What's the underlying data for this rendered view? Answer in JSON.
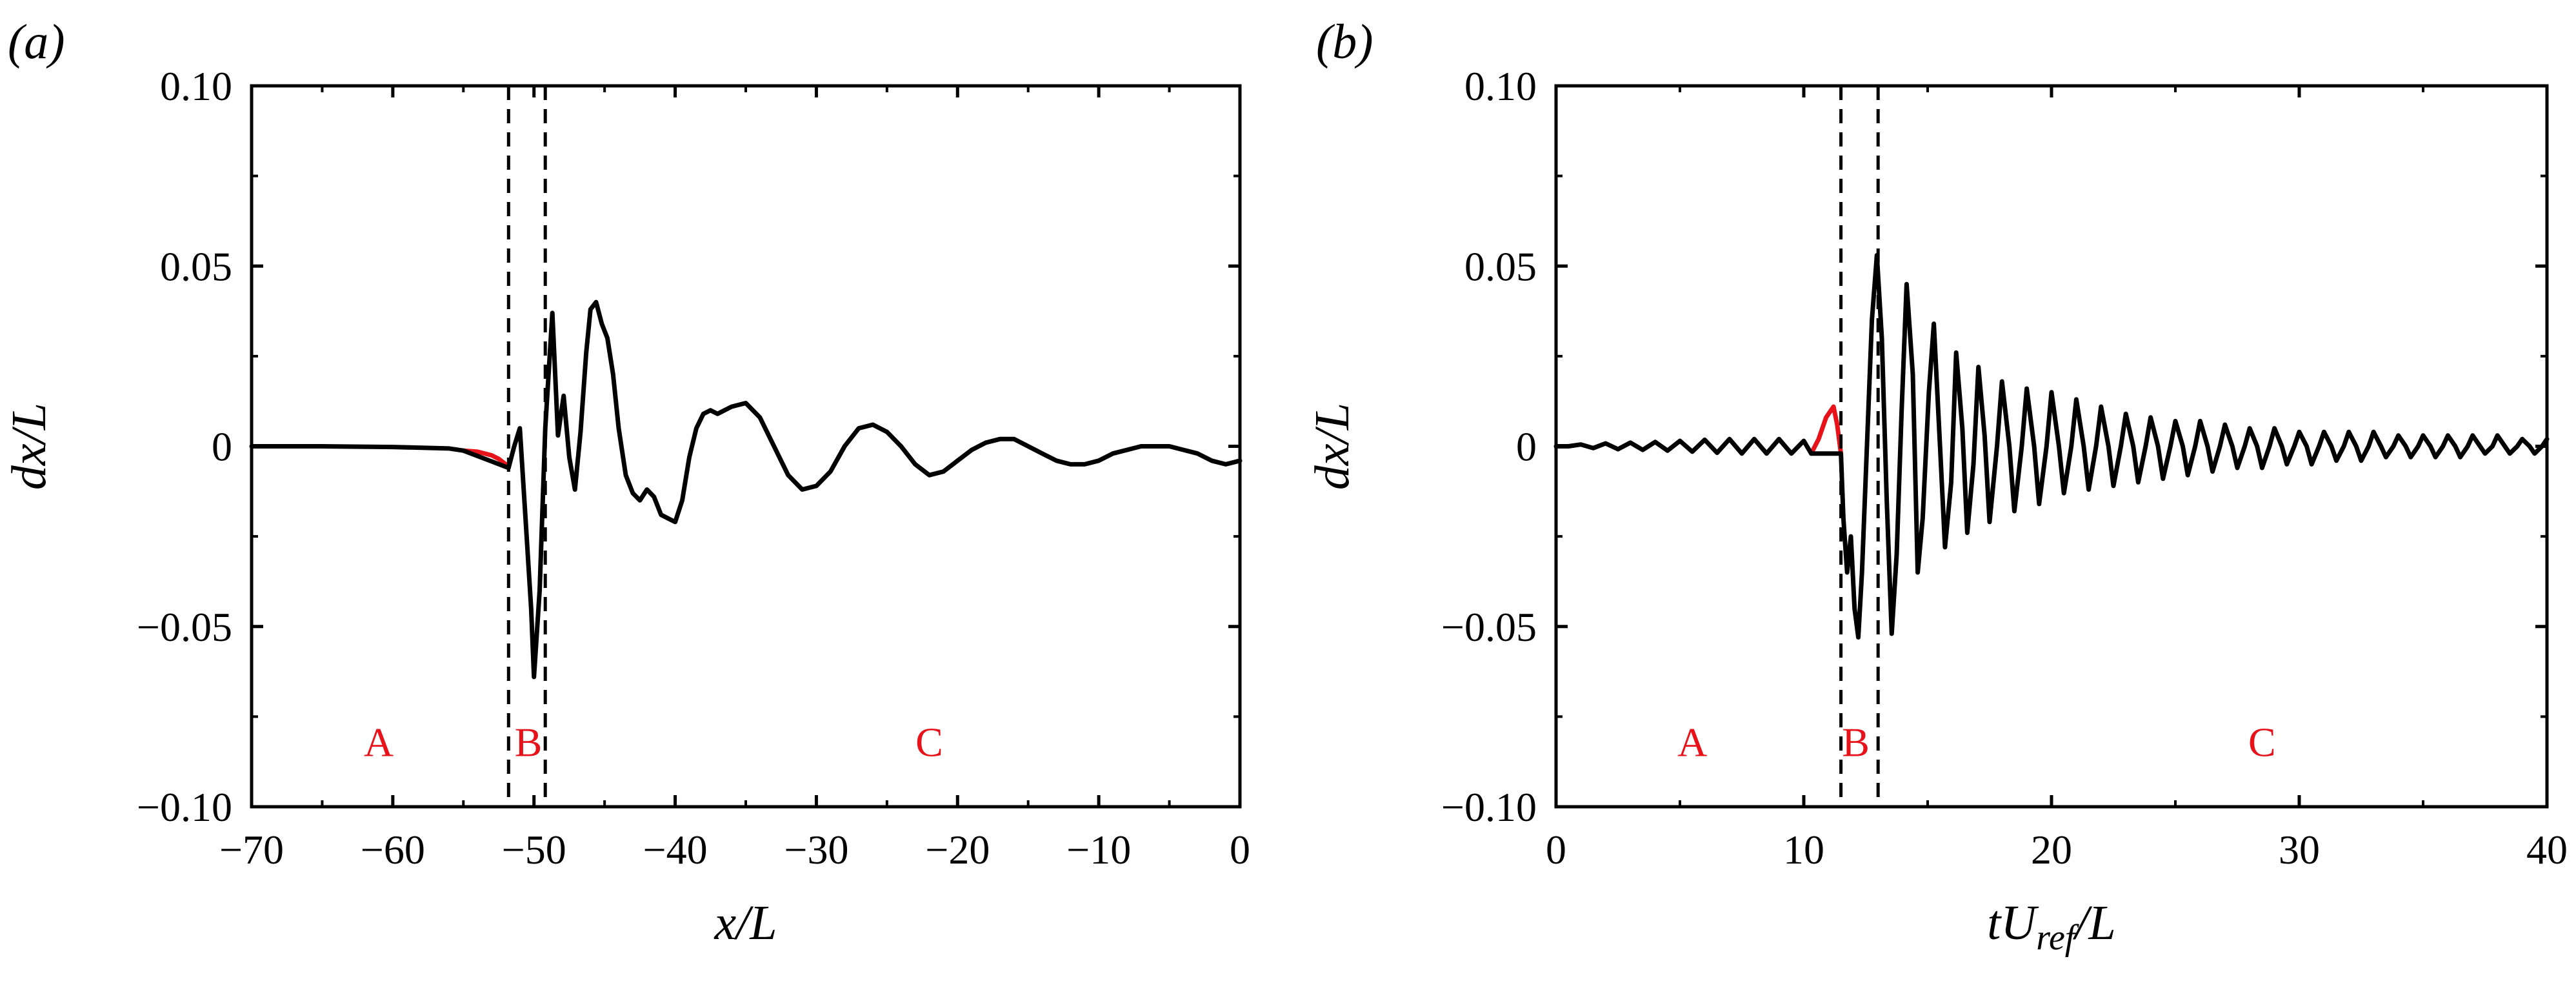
{
  "chart_data": [
    {
      "type": "line",
      "panel_label": "(a)",
      "xlabel": "x/L",
      "ylabel": "dx/L",
      "xlim": [
        -70,
        0
      ],
      "ylim": [
        -0.1,
        0.1
      ],
      "xticks": [
        -70,
        -60,
        -50,
        -40,
        -30,
        -20,
        -10,
        0
      ],
      "xtick_labels": [
        "−70",
        "−60",
        "−50",
        "−40",
        "−30",
        "−20",
        "−10",
        "0"
      ],
      "yticks": [
        -0.1,
        -0.05,
        0,
        0.05,
        0.1
      ],
      "ytick_labels": [
        "−0.10",
        "−0.05",
        "0",
        "0.05",
        "0.10"
      ],
      "vlines": [
        -51.8,
        -49.2
      ],
      "regions": [
        {
          "label": "A",
          "x": -61,
          "y": -0.082
        },
        {
          "label": "B",
          "x": -50.4,
          "y": -0.082
        },
        {
          "label": "C",
          "x": -22,
          "y": -0.082
        }
      ],
      "series": [
        {
          "color": "#e8131a",
          "x": [
            -55,
            -54,
            -53,
            -52.5,
            -52,
            -51.8
          ],
          "y": [
            -0.0012,
            -0.0015,
            -0.0025,
            -0.0035,
            -0.005,
            -0.006
          ]
        },
        {
          "color": "#000000",
          "x": [
            -70,
            -65,
            -60,
            -56,
            -55,
            -51.8,
            -51.4,
            -51,
            -50.6,
            -50.2,
            -50,
            -49.6,
            -49.2,
            -48.7,
            -48.3,
            -47.9,
            -47.5,
            -47.1,
            -46.7,
            -46.3,
            -46,
            -45.6,
            -45.2,
            -44.8,
            -44.4,
            -44,
            -43.5,
            -43,
            -42.5,
            -42,
            -41.5,
            -41,
            -40.5,
            -40,
            -39.5,
            -39,
            -38.5,
            -38,
            -37.5,
            -37,
            -36,
            -35,
            -34,
            -33,
            -32,
            -31,
            -30,
            -29,
            -28,
            -27,
            -26,
            -25,
            -24,
            -23,
            -22,
            -21,
            -20,
            -19,
            -18,
            -17,
            -16,
            -15,
            -14,
            -13,
            -12,
            -11,
            -10,
            -9,
            -8,
            -7,
            -6,
            -5,
            -4,
            -3,
            -2,
            -1,
            0
          ],
          "y": [
            0,
            0,
            -0.0002,
            -0.0006,
            -0.0012,
            -0.006,
            0,
            0.005,
            -0.02,
            -0.045,
            -0.064,
            -0.04,
            0.005,
            0.037,
            0.003,
            0.014,
            -0.003,
            -0.012,
            0.004,
            0.026,
            0.038,
            0.04,
            0.034,
            0.03,
            0.02,
            0.005,
            -0.008,
            -0.013,
            -0.015,
            -0.012,
            -0.014,
            -0.019,
            -0.02,
            -0.021,
            -0.015,
            -0.003,
            0.005,
            0.009,
            0.01,
            0.009,
            0.011,
            0.012,
            0.008,
            0.0,
            -0.008,
            -0.012,
            -0.011,
            -0.007,
            0.0,
            0.005,
            0.006,
            0.004,
            0.0,
            -0.005,
            -0.008,
            -0.007,
            -0.004,
            -0.001,
            0.001,
            0.002,
            0.002,
            0.0,
            -0.002,
            -0.004,
            -0.005,
            -0.005,
            -0.004,
            -0.002,
            -0.001,
            0.0,
            0.0,
            0.0,
            -0.001,
            -0.002,
            -0.004,
            -0.005,
            -0.004
          ]
        }
      ]
    },
    {
      "type": "line",
      "panel_label": "(b)",
      "xlabel": "tU_ref/L",
      "xlabel_main": "tU",
      "xlabel_sub": "ref",
      "xlabel_tail": "/L",
      "ylabel": "dx/L",
      "xlim": [
        0,
        40
      ],
      "ylim": [
        -0.1,
        0.1
      ],
      "xticks": [
        0,
        10,
        20,
        30,
        40
      ],
      "xtick_labels": [
        "0",
        "10",
        "20",
        "30",
        "40"
      ],
      "yticks": [
        -0.1,
        -0.05,
        0,
        0.05,
        0.1
      ],
      "ytick_labels": [
        "−0.10",
        "−0.05",
        "0",
        "0.05",
        "0.10"
      ],
      "vlines": [
        11.5,
        13.0
      ],
      "regions": [
        {
          "label": "A",
          "x": 5.5,
          "y": -0.082
        },
        {
          "label": "B",
          "x": 12.1,
          "y": -0.082
        },
        {
          "label": "C",
          "x": 28.5,
          "y": -0.082
        }
      ],
      "series": [
        {
          "color": "#e8131a",
          "x": [
            10.3,
            10.6,
            10.9,
            11.2,
            11.35,
            11.5
          ],
          "y": [
            -0.002,
            0.002,
            0.008,
            0.011,
            0.006,
            -0.002
          ]
        },
        {
          "color": "#000000",
          "x": [
            0,
            0.5,
            1,
            1.5,
            2,
            2.5,
            3,
            3.5,
            4,
            4.5,
            5,
            5.5,
            6,
            6.5,
            7,
            7.5,
            8,
            8.5,
            9,
            9.5,
            10,
            10.3,
            11.5,
            11.6,
            11.75,
            11.9,
            12.05,
            12.2,
            12.35,
            12.55,
            12.75,
            12.95,
            13.15,
            13.35,
            13.55,
            13.75,
            13.95,
            14.15,
            14.4,
            14.6,
            14.8,
            15.05,
            15.25,
            15.5,
            15.7,
            15.95,
            16.15,
            16.4,
            16.6,
            16.85,
            17.05,
            17.3,
            17.5,
            17.8,
            18.0,
            18.3,
            18.5,
            18.8,
            19.0,
            19.3,
            19.5,
            19.8,
            20.0,
            20.3,
            20.5,
            20.8,
            21.0,
            21.3,
            21.5,
            21.8,
            22.0,
            22.3,
            22.5,
            22.8,
            23.0,
            23.3,
            23.5,
            23.8,
            24.0,
            24.3,
            24.5,
            24.8,
            25.0,
            25.3,
            25.5,
            25.8,
            26.0,
            26.3,
            26.5,
            26.8,
            27.0,
            27.3,
            27.5,
            27.8,
            28.0,
            28.3,
            28.5,
            28.8,
            29.0,
            29.3,
            29.5,
            29.8,
            30.0,
            30.3,
            30.5,
            30.8,
            31.0,
            31.3,
            31.5,
            31.8,
            32.0,
            32.3,
            32.5,
            32.8,
            33.0,
            33.3,
            33.5,
            33.8,
            34.0,
            34.3,
            34.5,
            34.8,
            35.0,
            35.3,
            35.5,
            35.8,
            36.0,
            36.3,
            36.5,
            36.8,
            37.0,
            37.3,
            37.5,
            37.8,
            38.0,
            38.3,
            38.5,
            38.8,
            39.0,
            39.3,
            39.5,
            39.8,
            40.0
          ],
          "y": [
            0,
            0,
            0.0005,
            -0.0005,
            0.0008,
            -0.0008,
            0.001,
            -0.001,
            0.0012,
            -0.0012,
            0.0015,
            -0.0015,
            0.0018,
            -0.0018,
            0.002,
            -0.002,
            0.002,
            -0.002,
            0.002,
            -0.002,
            0.0015,
            -0.002,
            -0.002,
            -0.02,
            -0.035,
            -0.025,
            -0.045,
            -0.053,
            -0.035,
            0.0,
            0.035,
            0.053,
            0.03,
            -0.015,
            -0.052,
            -0.03,
            0.01,
            0.045,
            0.02,
            -0.035,
            -0.02,
            0.015,
            0.034,
            0.0,
            -0.028,
            -0.01,
            0.026,
            0.005,
            -0.024,
            -0.005,
            0.022,
            0.003,
            -0.021,
            0.0,
            0.018,
            0.0,
            -0.018,
            0.0,
            0.016,
            0.0,
            -0.016,
            0.0,
            0.015,
            0.0,
            -0.013,
            0.0,
            0.013,
            0.0,
            -0.012,
            0.0,
            0.011,
            0.0,
            -0.011,
            0.0,
            0.009,
            0.0,
            -0.01,
            0.0,
            0.008,
            0.0,
            -0.009,
            0.0,
            0.007,
            0.0,
            -0.008,
            0.0,
            0.007,
            0.0,
            -0.007,
            0.0,
            0.006,
            0.0,
            -0.006,
            0.0,
            0.005,
            0.0,
            -0.006,
            0.0,
            0.005,
            0.0,
            -0.005,
            0.0,
            0.004,
            0.0,
            -0.005,
            0.0,
            0.004,
            0.0,
            -0.004,
            0.0,
            0.004,
            0.0,
            -0.004,
            0.0,
            0.004,
            0.0,
            -0.003,
            0.0,
            0.003,
            0.0,
            -0.003,
            0.0,
            0.003,
            0.0,
            -0.003,
            0.0,
            0.003,
            0.0,
            -0.003,
            0.0,
            0.003,
            0.0,
            -0.002,
            0.0,
            0.003,
            0.0,
            -0.002,
            0.0,
            0.002,
            0.0,
            -0.002,
            0.0,
            0.002
          ]
        }
      ]
    }
  ]
}
